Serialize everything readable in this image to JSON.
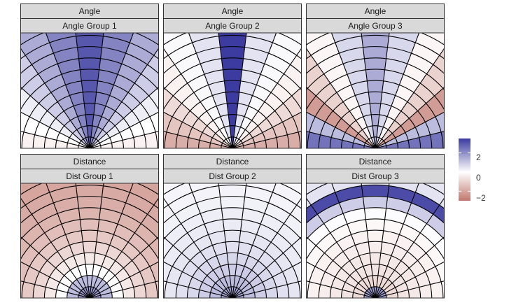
{
  "chart_data": {
    "type": "heatmap",
    "title": "",
    "layout": "2 rows x 3 columns faceted polar-sector heatmaps",
    "colors": {
      "low": "#c0786e",
      "mid": "#ffffff",
      "high": "#3b3ba0",
      "line": "#000000",
      "strip": "#d9d9d9"
    },
    "legend": {
      "position": "right",
      "breaks": [
        2,
        0,
        -2
      ],
      "labels": [
        "2",
        "0",
        "−2"
      ],
      "limits": [
        -3,
        3.5
      ]
    },
    "facets": [
      {
        "strip_top": "Angle",
        "strip_bottom": "Angle Group 1",
        "sector_values": [
          -0.3,
          0.0,
          0.3,
          0.9,
          1.5,
          2.2,
          3.0,
          2.2,
          1.5,
          0.9,
          0.3,
          0.0,
          -0.3
        ],
        "band_values": []
      },
      {
        "strip_top": "Angle",
        "strip_bottom": "Angle Group 2",
        "sector_values": [
          -1.8,
          -1.3,
          -0.8,
          -0.3,
          0.1,
          0.5,
          3.5,
          0.5,
          0.1,
          -0.3,
          -0.8,
          -1.3,
          -1.8
        ],
        "band_values": []
      },
      {
        "strip_top": "Angle",
        "strip_bottom": "Angle Group 3",
        "sector_values": [
          2.5,
          1.2,
          -2.2,
          -1.0,
          -0.2,
          0.7,
          1.5,
          0.7,
          -0.2,
          -1.0,
          -2.2,
          1.2,
          2.5
        ],
        "band_values": []
      },
      {
        "strip_top": "Distance",
        "strip_bottom": "Dist Group 1",
        "sector_values": [],
        "band_values": [
          1.8,
          1.2,
          0.0,
          -0.5,
          -0.9,
          -1.2,
          -1.45,
          -1.65,
          -1.8,
          -1.9,
          -2.0,
          -2.05,
          -2.1
        ]
      },
      {
        "strip_top": "Distance",
        "strip_bottom": "Dist Group 2",
        "sector_values": [],
        "band_values": [
          1.6,
          1.2,
          0.9,
          0.7,
          0.55,
          0.45,
          0.35,
          0.3,
          0.25,
          0.22,
          0.2,
          0.18,
          0.15
        ]
      },
      {
        "strip_top": "Distance",
        "strip_bottom": "Dist Group 3",
        "sector_values": [],
        "band_values": [
          1.8,
          -0.8,
          -0.6,
          -0.5,
          -0.4,
          -0.3,
          -0.15,
          0.05,
          0.9,
          3.2,
          0.5,
          0.45,
          0.45
        ]
      }
    ]
  }
}
